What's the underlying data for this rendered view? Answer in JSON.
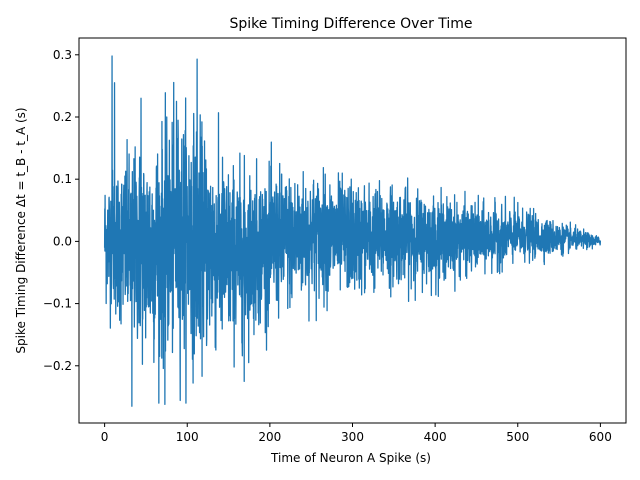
{
  "chart_data": {
    "type": "line",
    "title": "Spike Timing Difference Over Time",
    "xlabel": "Time of Neuron A Spike (s)",
    "ylabel": "Spike Timing Difference Δt = t_B - t_A (s)",
    "xlim": [
      -31,
      631
    ],
    "ylim": [
      -0.292,
      0.327
    ],
    "xticks": [
      0,
      100,
      200,
      300,
      400,
      500,
      600
    ],
    "yticks": [
      -0.2,
      -0.1,
      0.0,
      0.1,
      0.2,
      0.3
    ],
    "xtick_labels": [
      "0",
      "100",
      "200",
      "300",
      "400",
      "500",
      "600"
    ],
    "ytick_labels": [
      "−0.2",
      "−0.1",
      "0.0",
      "0.1",
      "0.2",
      "0.3"
    ],
    "grid": false,
    "series": [
      {
        "color": "#1f77b4",
        "envelope_x": [
          0,
          50,
          100,
          150,
          200,
          250,
          300,
          350,
          400,
          450,
          500,
          550,
          600
        ],
        "envelope_upper": [
          0.15,
          0.23,
          0.29,
          0.18,
          0.16,
          0.15,
          0.13,
          0.12,
          0.1,
          0.08,
          0.07,
          0.04,
          0.01
        ],
        "envelope_lower": [
          -0.14,
          -0.26,
          -0.26,
          -0.23,
          -0.17,
          -0.13,
          -0.12,
          -0.1,
          -0.09,
          -0.07,
          -0.05,
          -0.03,
          -0.01
        ],
        "peaks": [
          {
            "x": 9,
            "y": 0.298
          },
          {
            "x": 12,
            "y": 0.255
          },
          {
            "x": 112,
            "y": 0.293
          },
          {
            "x": 44,
            "y": 0.23
          },
          {
            "x": 33,
            "y": -0.265
          },
          {
            "x": 73,
            "y": -0.262
          },
          {
            "x": 169,
            "y": -0.225
          },
          {
            "x": 87,
            "y": 0.225
          }
        ]
      }
    ]
  }
}
